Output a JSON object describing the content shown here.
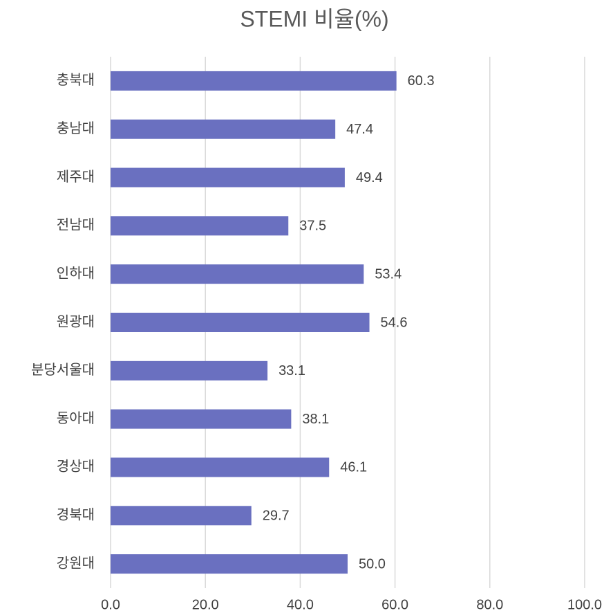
{
  "chart_data": {
    "type": "barh",
    "title": "STEMI 비율(%)",
    "categories": [
      "충북대",
      "충남대",
      "제주대",
      "전남대",
      "인하대",
      "원광대",
      "분당서울대",
      "동아대",
      "경상대",
      "경북대",
      "강원대"
    ],
    "values": [
      60.3,
      47.4,
      49.4,
      37.5,
      53.4,
      54.6,
      33.1,
      38.1,
      46.1,
      29.7,
      50
    ],
    "value_labels": [
      "60.3",
      "47.4",
      "49.4",
      "37.5",
      "53.4",
      "54.6",
      "33.1",
      "38.1",
      "46.1",
      "29.7",
      "50.0"
    ],
    "color": "#6a70c0",
    "xlim": [
      0,
      100
    ],
    "xticks": [
      {
        "value": 0,
        "label": "0.0"
      },
      {
        "value": 20,
        "label": "20.0"
      },
      {
        "value": 40,
        "label": "40.0"
      },
      {
        "value": 60,
        "label": "60.0"
      },
      {
        "value": 80,
        "label": "80.0"
      },
      {
        "value": 100,
        "label": "100.0"
      }
    ],
    "grid": true
  }
}
